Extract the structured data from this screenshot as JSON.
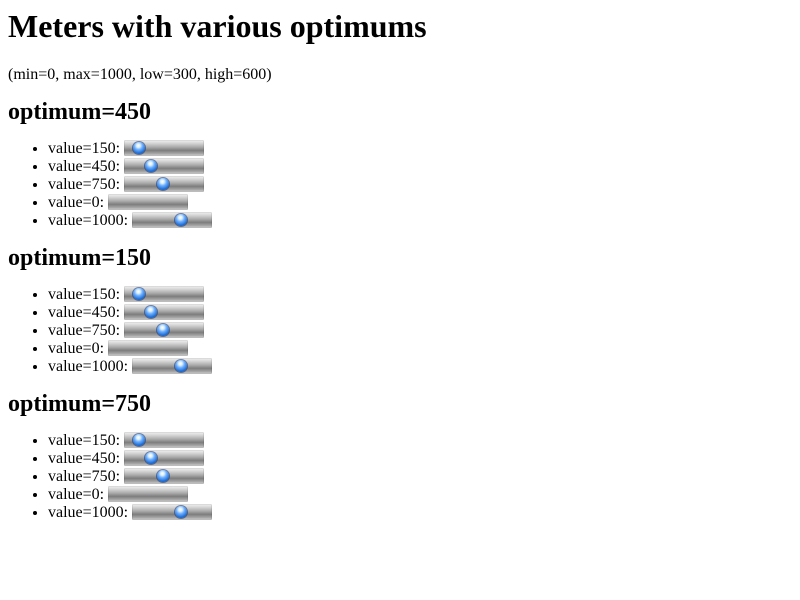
{
  "page": {
    "title": "Meters with various optimums",
    "subtitle": "(min=0, max=1000, low=300, high=600)"
  },
  "meter": {
    "min": 0,
    "max": 1000
  },
  "groups": [
    {
      "heading": "optimum=450",
      "items": [
        {
          "label": "value=150:",
          "value": 150,
          "show_knob": true
        },
        {
          "label": "value=450:",
          "value": 450,
          "show_knob": true
        },
        {
          "label": "value=750:",
          "value": 750,
          "show_knob": true
        },
        {
          "label": "value=0:",
          "value": 0,
          "show_knob": false
        },
        {
          "label": "value=1000:",
          "value": 1000,
          "show_knob": true
        }
      ]
    },
    {
      "heading": "optimum=150",
      "items": [
        {
          "label": "value=150:",
          "value": 150,
          "show_knob": true
        },
        {
          "label": "value=450:",
          "value": 450,
          "show_knob": true
        },
        {
          "label": "value=750:",
          "value": 750,
          "show_knob": true
        },
        {
          "label": "value=0:",
          "value": 0,
          "show_knob": false
        },
        {
          "label": "value=1000:",
          "value": 1000,
          "show_knob": true
        }
      ]
    },
    {
      "heading": "optimum=750",
      "items": [
        {
          "label": "value=150:",
          "value": 150,
          "show_knob": true
        },
        {
          "label": "value=450:",
          "value": 450,
          "show_knob": true
        },
        {
          "label": "value=750:",
          "value": 750,
          "show_knob": true
        },
        {
          "label": "value=0:",
          "value": 0,
          "show_knob": false
        },
        {
          "label": "value=1000:",
          "value": 1000,
          "show_knob": true
        }
      ]
    }
  ]
}
